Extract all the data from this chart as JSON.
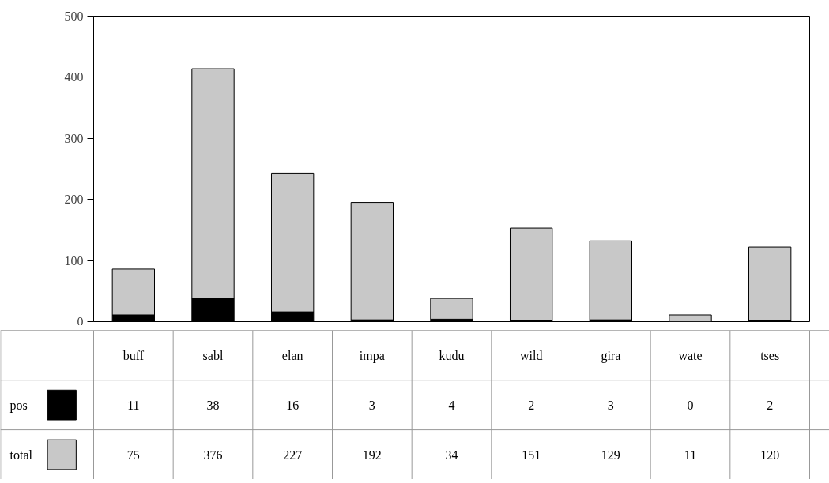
{
  "chart_data": {
    "type": "bar",
    "stacked": true,
    "categories": [
      "buff",
      "sabl",
      "elan",
      "impa",
      "kudu",
      "wild",
      "gira",
      "wate",
      "tses"
    ],
    "series": [
      {
        "name": "pos",
        "color": "#000000",
        "values": [
          11,
          38,
          16,
          3,
          4,
          2,
          3,
          0,
          2
        ]
      },
      {
        "name": "total",
        "color": "#c8c8c8",
        "values": [
          75,
          376,
          227,
          192,
          34,
          151,
          129,
          11,
          120
        ]
      }
    ],
    "ylim": [
      0,
      500
    ],
    "yticks": [
      0,
      100,
      200,
      300,
      400,
      500
    ],
    "grid": false,
    "legend": "bottom left",
    "data_labels": true
  }
}
